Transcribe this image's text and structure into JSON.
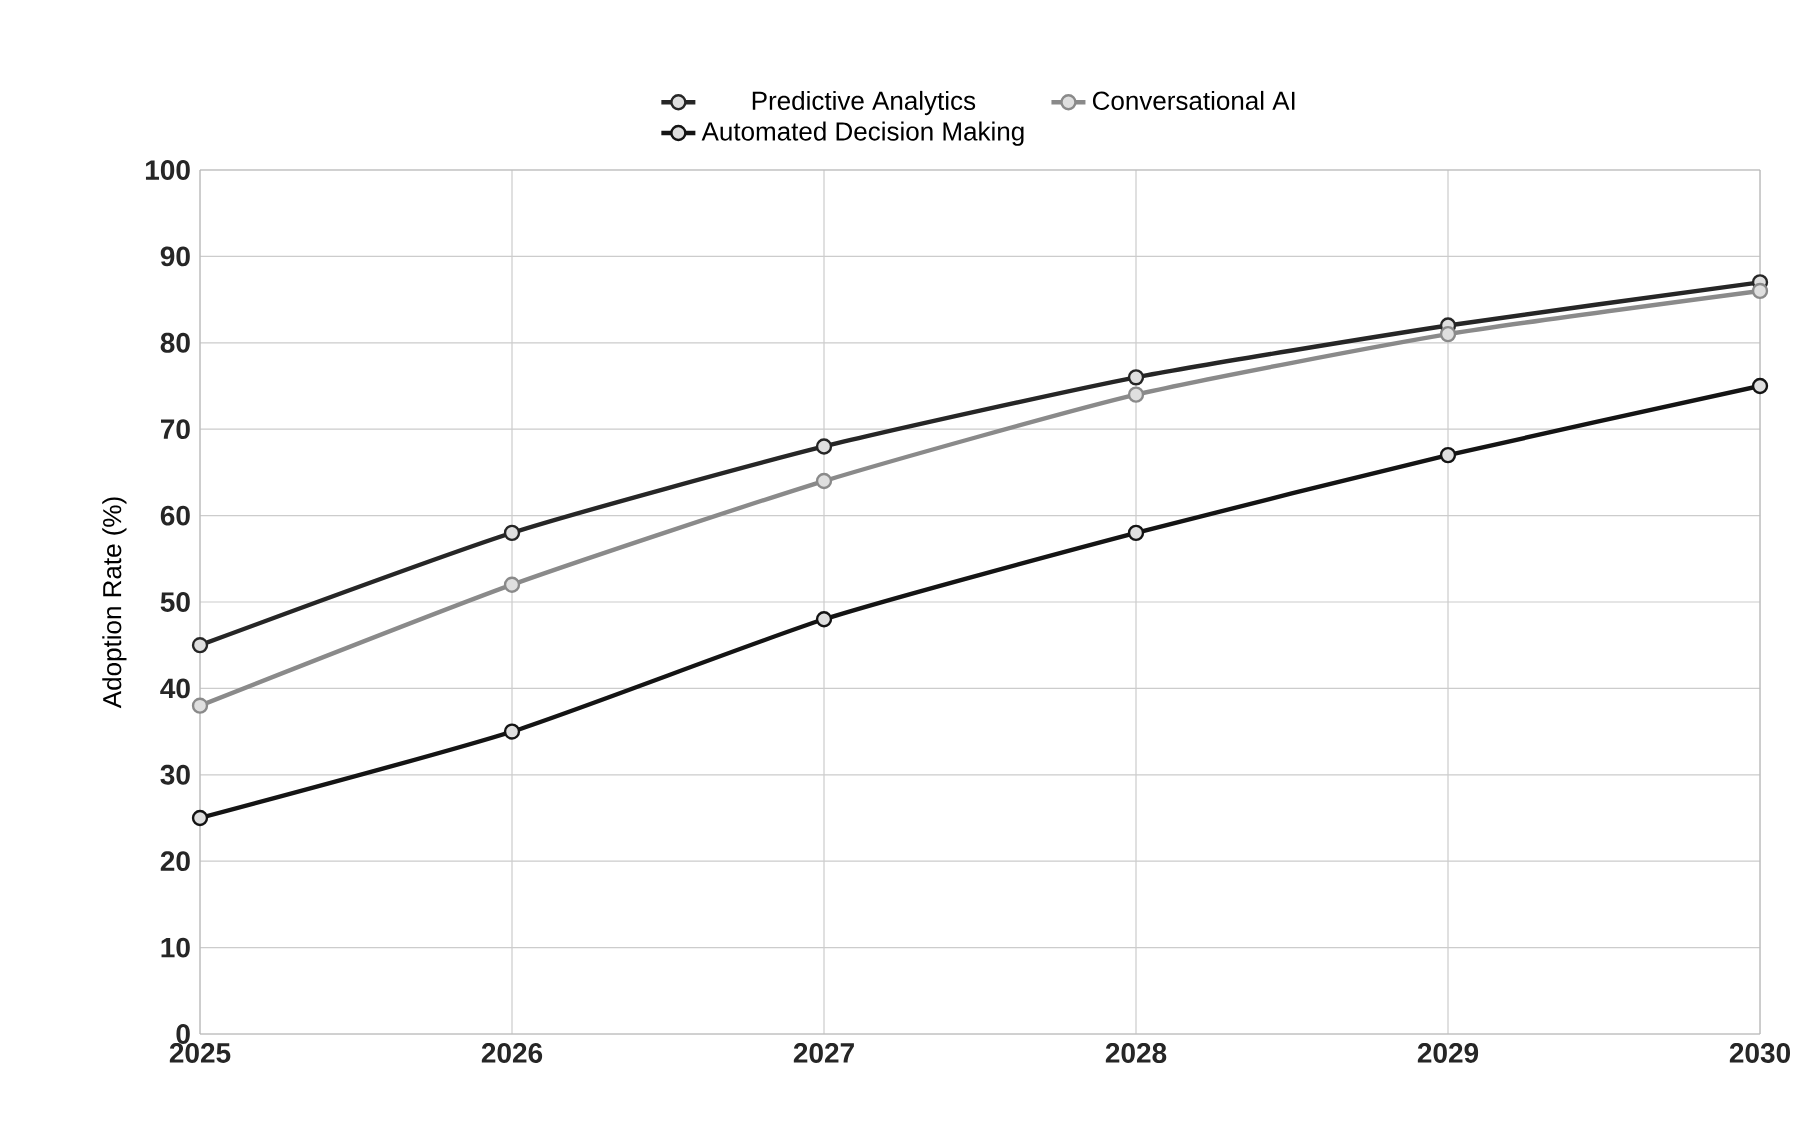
{
  "chart_data": {
    "type": "line",
    "ylabel": "Adoption Rate (%)",
    "categories": [
      "2025",
      "2026",
      "2027",
      "2028",
      "2029",
      "2030"
    ],
    "series": [
      {
        "name": "Predictive Analytics",
        "color": "#262626",
        "values": [
          45,
          58,
          68,
          76,
          82,
          87
        ]
      },
      {
        "name": "Conversational AI",
        "color": "#8a8a8a",
        "values": [
          38,
          52,
          64,
          74,
          81,
          86
        ]
      },
      {
        "name": "Automated Decision Making",
        "color": "#141414",
        "values": [
          25,
          35,
          48,
          58,
          67,
          75
        ]
      }
    ],
    "ylim": [
      0,
      100
    ],
    "yticks": [
      0,
      10,
      20,
      30,
      40,
      50,
      60,
      70,
      80,
      90,
      100
    ],
    "grid": true,
    "legend": "top",
    "marker": "circle",
    "line_style": "solid"
  }
}
